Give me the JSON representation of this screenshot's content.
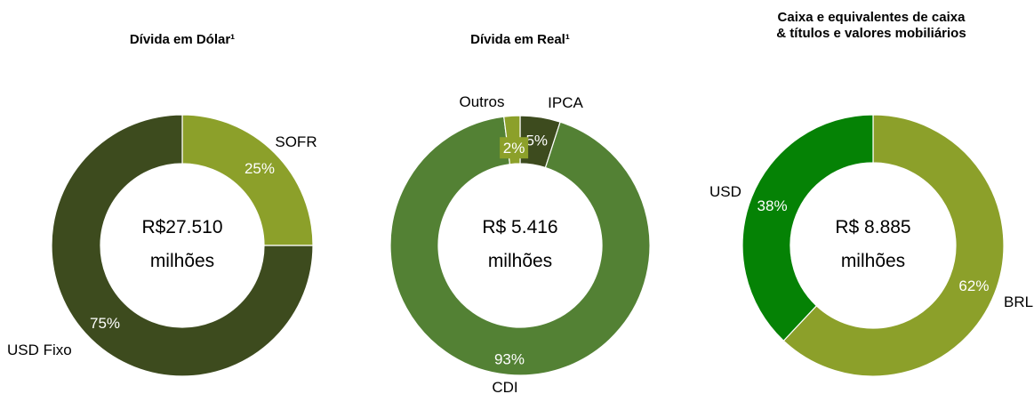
{
  "colors": {
    "olive_light": "#8CA02A",
    "olive_dark": "#3D4B1E",
    "green_mid": "#538134",
    "green_bright": "#058205",
    "white": "#FFFFFF"
  },
  "chart_data": [
    {
      "type": "pie",
      "variant": "donut",
      "title": "Dívida em Dólar¹",
      "center_lines": [
        "R$27.510",
        "milhões"
      ],
      "series": [
        {
          "name": "SOFR",
          "value": 25,
          "label": "25%",
          "color": "#8CA02A"
        },
        {
          "name": "USD Fixo",
          "value": 75,
          "label": "75%",
          "color": "#3D4B1E"
        }
      ]
    },
    {
      "type": "pie",
      "variant": "donut",
      "title": "Dívida em Real¹",
      "center_lines": [
        "R$ 5.416",
        "milhões"
      ],
      "series": [
        {
          "name": "IPCA",
          "value": 5,
          "label": "5%",
          "color": "#3D4B1E"
        },
        {
          "name": "CDI",
          "value": 93,
          "label": "93%",
          "color": "#538134"
        },
        {
          "name": "Outros",
          "value": 2,
          "label": "2%",
          "color": "#8CA02A"
        }
      ]
    },
    {
      "type": "pie",
      "variant": "donut",
      "title": "Caixa e equivalentes de caixa & títulos e valores mobiliários",
      "title_lines": [
        "Caixa e equivalentes de caixa",
        "& títulos e valores mobiliários"
      ],
      "center_lines": [
        "R$ 8.885",
        "milhões"
      ],
      "series": [
        {
          "name": "BRL",
          "value": 62,
          "label": "62%",
          "color": "#8CA02A"
        },
        {
          "name": "USD",
          "value": 38,
          "label": "38%",
          "color": "#058205"
        }
      ]
    }
  ]
}
